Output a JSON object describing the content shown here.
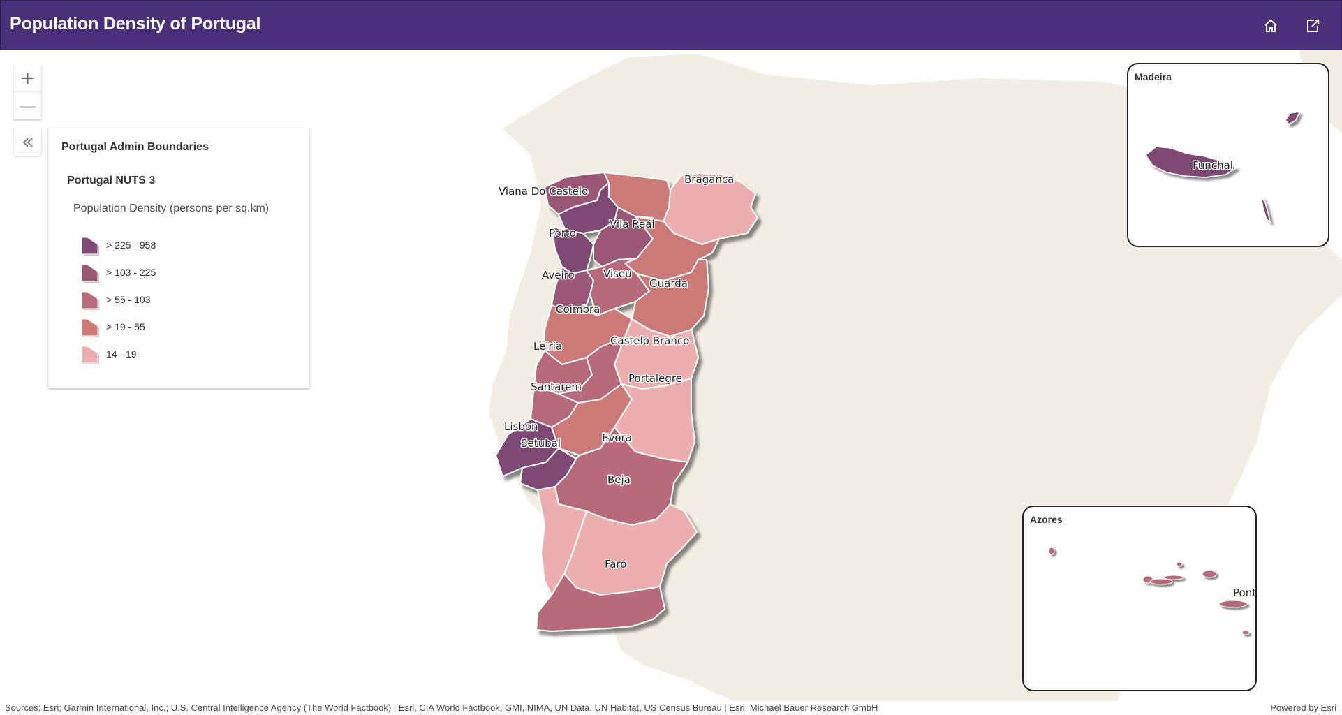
{
  "header": {
    "title": "Population Density of Portugal",
    "home_icon": "home-icon",
    "share_icon": "share-icon",
    "background": "#4a3079"
  },
  "zoom": {
    "in": "+",
    "out": "—"
  },
  "legend": {
    "collapse_icon": "double-chevron-left-icon",
    "layer_title": "Portugal Admin Boundaries",
    "sublayer_title": "Portugal NUTS 3",
    "field": "Population Density (persons per sq.km)",
    "classes": [
      {
        "label": "> 225 - 958",
        "color": "#7e4a74"
      },
      {
        "label": "> 103 - 225",
        "color": "#9b5876"
      },
      {
        "label": "> 55 - 103",
        "color": "#b76b7b"
      },
      {
        "label": "> 19 - 55",
        "color": "#cc7a78"
      },
      {
        "label": "14 - 19",
        "color": "#ecaeae"
      }
    ]
  },
  "map": {
    "land_color": "#f3eee3",
    "region_labels": {
      "braganca": "Braganca",
      "viana": "Viana Do Castelo",
      "porto": "Porto",
      "vila_real": "Vila Real",
      "aveiro": "Aveiro",
      "viseu": "Viseu",
      "guarda": "Guarda",
      "coimbra": "Coimbra",
      "castelo_branco": "Castelo Branco",
      "leiria": "Leiria",
      "portalegre": "Portalegre",
      "santarem": "Santarem",
      "lisbon": "Lisbon",
      "setubal": "Setubal",
      "evora": "Evora",
      "beja": "Beja",
      "faro": "Faro"
    }
  },
  "insets": {
    "madeira": {
      "title": "Madeira",
      "label": "Funchal"
    },
    "azores": {
      "title": "Azores",
      "label": "Ponta Delgada"
    }
  },
  "footer": {
    "sources": "Sources: Esri; Garmin International, Inc.; U.S. Central Intelligence Agency (The World Factbook) | Esri, CIA World Factbook, GMI, NIMA, UN Data, UN Habitat, US Census Bureau | Esri; Michael Bauer Research GmbH",
    "powered": "Powered by Esri"
  }
}
